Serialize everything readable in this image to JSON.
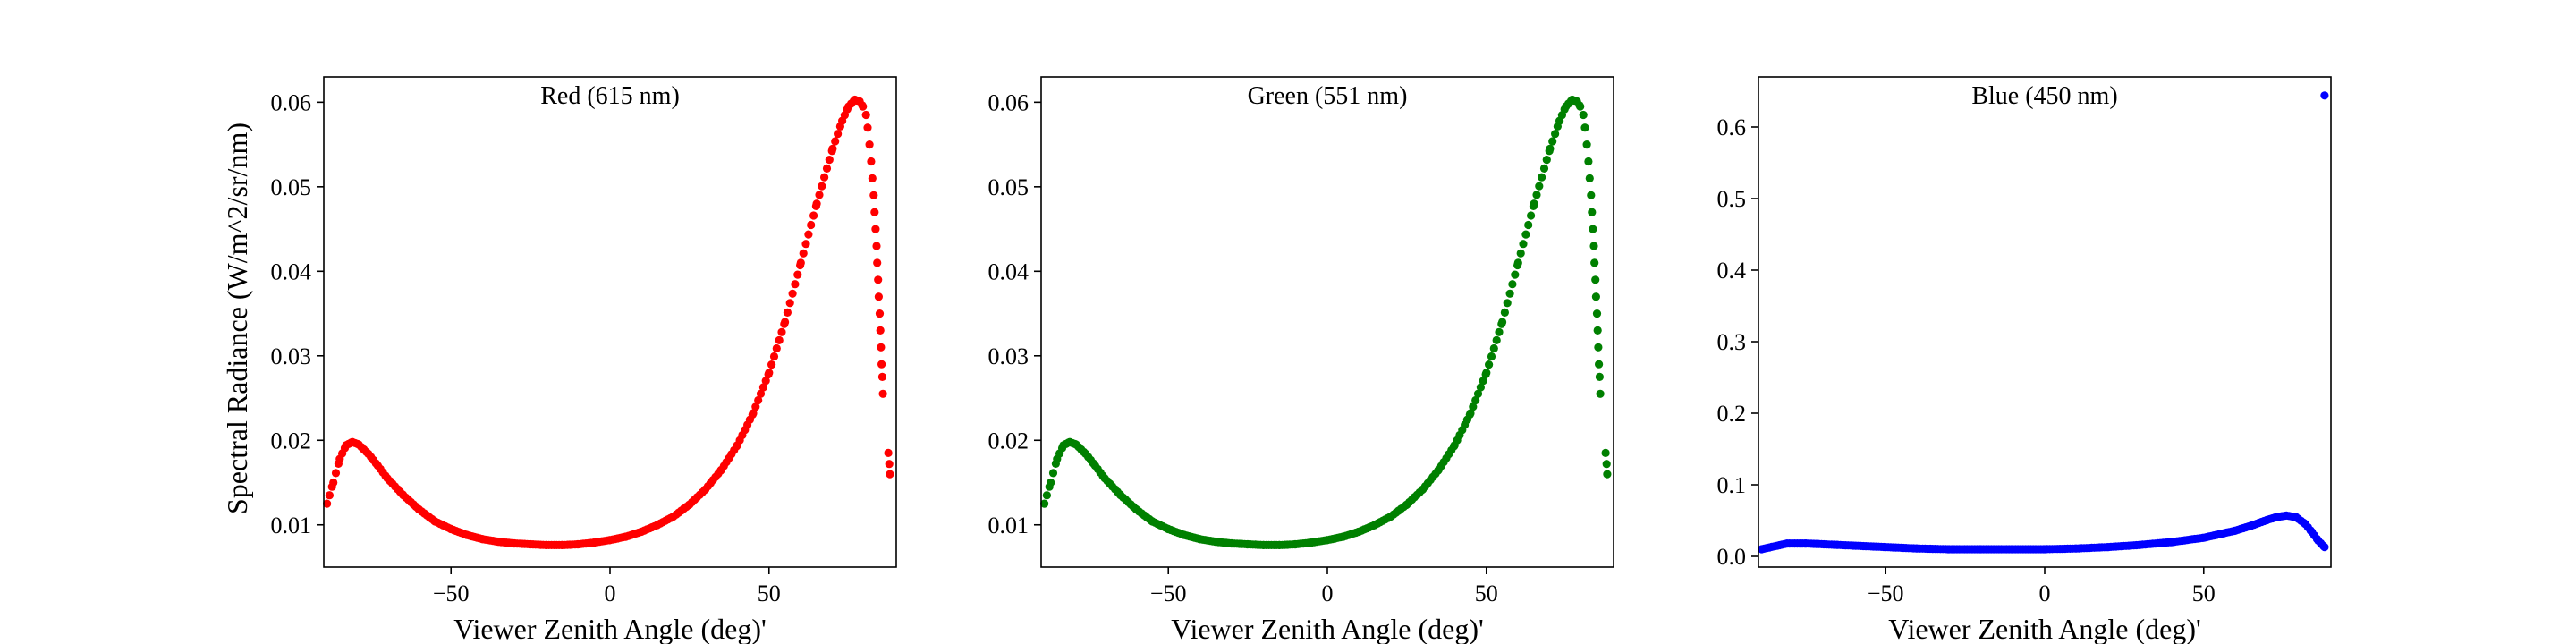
{
  "figure": {
    "ylabel": "Spectral Radiance (W/m^2/sr/nm)"
  },
  "chart_data": [
    {
      "type": "scatter",
      "title": "Red (615 nm)",
      "xlabel": "Viewer Zenith Angle (deg)'",
      "ylabel": "Spectral Radiance (W/m^2/sr/nm)",
      "xlim": [
        -90,
        90
      ],
      "ylim": [
        0.005,
        0.063
      ],
      "xticks": [
        -50,
        0,
        50
      ],
      "xtick_labels": [
        "−50",
        "0",
        "50"
      ],
      "yticks": [
        0.01,
        0.02,
        0.03,
        0.04,
        0.05,
        0.06
      ],
      "ytick_labels": [
        "0.01",
        "0.02",
        "0.03",
        "0.04",
        "0.05",
        "0.06"
      ],
      "color": "#ff0000",
      "curve": [
        [
          -89,
          0.0125
        ],
        [
          -87,
          0.015
        ],
        [
          -85,
          0.0178
        ],
        [
          -83,
          0.0194
        ],
        [
          -81,
          0.0198
        ],
        [
          -79,
          0.0195
        ],
        [
          -76,
          0.0184
        ],
        [
          -73,
          0.017
        ],
        [
          -70,
          0.0155
        ],
        [
          -65,
          0.0135
        ],
        [
          -60,
          0.0118
        ],
        [
          -55,
          0.0104
        ],
        [
          -50,
          0.0095
        ],
        [
          -45,
          0.0088
        ],
        [
          -40,
          0.0083
        ],
        [
          -35,
          0.008
        ],
        [
          -30,
          0.0078
        ],
        [
          -25,
          0.0077
        ],
        [
          -20,
          0.0076
        ],
        [
          -15,
          0.0076
        ],
        [
          -10,
          0.0077
        ],
        [
          -5,
          0.0079
        ],
        [
          0,
          0.0082
        ],
        [
          5,
          0.0086
        ],
        [
          10,
          0.0092
        ],
        [
          15,
          0.01
        ],
        [
          20,
          0.011
        ],
        [
          25,
          0.0124
        ],
        [
          30,
          0.0142
        ],
        [
          35,
          0.0165
        ],
        [
          40,
          0.0194
        ],
        [
          45,
          0.0232
        ],
        [
          50,
          0.028
        ],
        [
          55,
          0.034
        ],
        [
          60,
          0.041
        ],
        [
          65,
          0.048
        ],
        [
          70,
          0.0545
        ],
        [
          73,
          0.0578
        ],
        [
          75,
          0.0595
        ],
        [
          77,
          0.0603
        ],
        [
          78.5,
          0.0601
        ],
        [
          79.5,
          0.0595
        ]
      ],
      "tail": [
        [
          80.5,
          0.0585
        ],
        [
          81,
          0.057
        ],
        [
          81.6,
          0.055
        ],
        [
          82.1,
          0.053
        ],
        [
          82.5,
          0.051
        ],
        [
          82.9,
          0.049
        ],
        [
          83.2,
          0.047
        ],
        [
          83.5,
          0.045
        ],
        [
          83.8,
          0.043
        ],
        [
          84.0,
          0.041
        ],
        [
          84.3,
          0.039
        ],
        [
          84.5,
          0.037
        ],
        [
          84.8,
          0.035
        ],
        [
          85.0,
          0.033
        ],
        [
          85.2,
          0.031
        ],
        [
          85.4,
          0.029
        ],
        [
          85.6,
          0.0275
        ],
        [
          85.8,
          0.0255
        ],
        [
          87.5,
          0.0185
        ],
        [
          87.8,
          0.0172
        ],
        [
          88.0,
          0.016
        ]
      ]
    },
    {
      "type": "scatter",
      "title": "Green (551 nm)",
      "xlabel": "Viewer Zenith Angle (deg)'",
      "xlim": [
        -90,
        90
      ],
      "ylim": [
        0.005,
        0.063
      ],
      "xticks": [
        -50,
        0,
        50
      ],
      "xtick_labels": [
        "−50",
        "0",
        "50"
      ],
      "yticks": [
        0.01,
        0.02,
        0.03,
        0.04,
        0.05,
        0.06
      ],
      "ytick_labels": [
        "0.01",
        "0.02",
        "0.03",
        "0.04",
        "0.05",
        "0.06"
      ],
      "color": "#008000",
      "curve": [
        [
          -89,
          0.0125
        ],
        [
          -87,
          0.015
        ],
        [
          -85,
          0.0178
        ],
        [
          -83,
          0.0194
        ],
        [
          -81,
          0.0198
        ],
        [
          -79,
          0.0195
        ],
        [
          -76,
          0.0184
        ],
        [
          -73,
          0.017
        ],
        [
          -70,
          0.0155
        ],
        [
          -65,
          0.0135
        ],
        [
          -60,
          0.0118
        ],
        [
          -55,
          0.0104
        ],
        [
          -50,
          0.0095
        ],
        [
          -45,
          0.0088
        ],
        [
          -40,
          0.0083
        ],
        [
          -35,
          0.008
        ],
        [
          -30,
          0.0078
        ],
        [
          -25,
          0.0077
        ],
        [
          -20,
          0.0076
        ],
        [
          -15,
          0.0076
        ],
        [
          -10,
          0.0077
        ],
        [
          -5,
          0.0079
        ],
        [
          0,
          0.0082
        ],
        [
          5,
          0.0086
        ],
        [
          10,
          0.0092
        ],
        [
          15,
          0.01
        ],
        [
          20,
          0.011
        ],
        [
          25,
          0.0124
        ],
        [
          30,
          0.0142
        ],
        [
          35,
          0.0165
        ],
        [
          40,
          0.0194
        ],
        [
          45,
          0.0232
        ],
        [
          50,
          0.028
        ],
        [
          55,
          0.034
        ],
        [
          60,
          0.041
        ],
        [
          65,
          0.048
        ],
        [
          70,
          0.0545
        ],
        [
          73,
          0.0578
        ],
        [
          75,
          0.0595
        ],
        [
          77,
          0.0603
        ],
        [
          78.5,
          0.0601
        ],
        [
          79.5,
          0.0595
        ]
      ],
      "tail": [
        [
          80.5,
          0.0585
        ],
        [
          81,
          0.057
        ],
        [
          81.6,
          0.055
        ],
        [
          82.1,
          0.053
        ],
        [
          82.5,
          0.051
        ],
        [
          82.9,
          0.049
        ],
        [
          83.2,
          0.047
        ],
        [
          83.5,
          0.045
        ],
        [
          83.8,
          0.043
        ],
        [
          84.0,
          0.041
        ],
        [
          84.3,
          0.039
        ],
        [
          84.5,
          0.037
        ],
        [
          84.8,
          0.035
        ],
        [
          85.0,
          0.033
        ],
        [
          85.2,
          0.031
        ],
        [
          85.4,
          0.029
        ],
        [
          85.6,
          0.0275
        ],
        [
          85.8,
          0.0255
        ],
        [
          87.5,
          0.0185
        ],
        [
          87.8,
          0.0172
        ],
        [
          88.0,
          0.016
        ]
      ]
    },
    {
      "type": "scatter",
      "title": "Blue (450 nm)",
      "xlabel": "Viewer Zenith Angle (deg)'",
      "xlim": [
        -90,
        90
      ],
      "ylim": [
        -0.015,
        0.67
      ],
      "xticks": [
        -50,
        0,
        50
      ],
      "xtick_labels": [
        "−50",
        "0",
        "50"
      ],
      "yticks": [
        0.0,
        0.1,
        0.2,
        0.3,
        0.4,
        0.5,
        0.6
      ],
      "ytick_labels": [
        "0.0",
        "0.1",
        "0.2",
        "0.3",
        "0.4",
        "0.5",
        "0.6"
      ],
      "color": "#0000ff",
      "curve": [
        [
          -89,
          0.01
        ],
        [
          -85,
          0.014
        ],
        [
          -81,
          0.018
        ],
        [
          -75,
          0.018
        ],
        [
          -65,
          0.016
        ],
        [
          -50,
          0.013
        ],
        [
          -40,
          0.011
        ],
        [
          -30,
          0.01
        ],
        [
          -20,
          0.01
        ],
        [
          -10,
          0.01
        ],
        [
          0,
          0.01
        ],
        [
          10,
          0.011
        ],
        [
          20,
          0.013
        ],
        [
          30,
          0.016
        ],
        [
          40,
          0.02
        ],
        [
          50,
          0.026
        ],
        [
          60,
          0.036
        ],
        [
          65,
          0.043
        ],
        [
          70,
          0.051
        ],
        [
          73,
          0.055
        ],
        [
          76,
          0.057
        ],
        [
          79,
          0.055
        ],
        [
          82,
          0.045
        ],
        [
          84,
          0.034
        ],
        [
          86,
          0.022
        ],
        [
          88,
          0.013
        ]
      ],
      "tail": [],
      "outliers": [
        [
          88,
          0.644
        ]
      ]
    }
  ]
}
